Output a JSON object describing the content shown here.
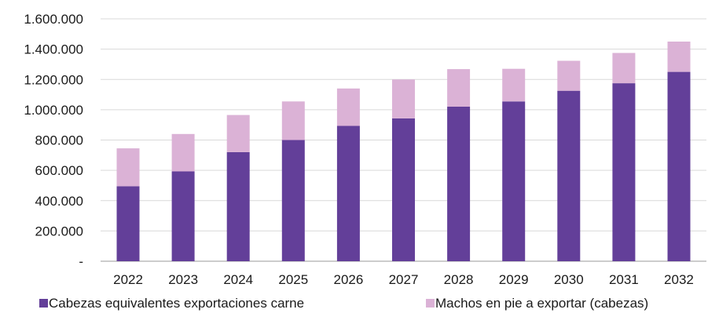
{
  "chart_data": {
    "type": "bar",
    "stacked": true,
    "categories": [
      "2022",
      "2023",
      "2024",
      "2025",
      "2026",
      "2027",
      "2028",
      "2029",
      "2030",
      "2031",
      "2032"
    ],
    "series": [
      {
        "name": "Cabezas equivalentes exportaciones carne",
        "color": "#633f99",
        "values": [
          495000,
          593000,
          720000,
          800000,
          893000,
          943000,
          1020000,
          1055000,
          1125000,
          1175000,
          1250000
        ]
      },
      {
        "name": "Machos en pie a exportar (cabezas)",
        "color": "#dbb2d6",
        "values": [
          250000,
          247000,
          245000,
          255000,
          247000,
          257000,
          248000,
          215000,
          198000,
          200000,
          200000
        ]
      }
    ],
    "ylim": [
      0,
      1600000
    ],
    "yticks": [
      0,
      200000,
      400000,
      600000,
      800000,
      1000000,
      1200000,
      1400000,
      1600000
    ],
    "ytick_labels": [
      "-",
      "200.000",
      "400.000",
      "600.000",
      "800.000",
      "1.000.000",
      "1.200.000",
      "1.400.000",
      "1.600.000"
    ],
    "grid": true,
    "legend_position": "bottom",
    "title": "",
    "xlabel": "",
    "ylabel": ""
  }
}
